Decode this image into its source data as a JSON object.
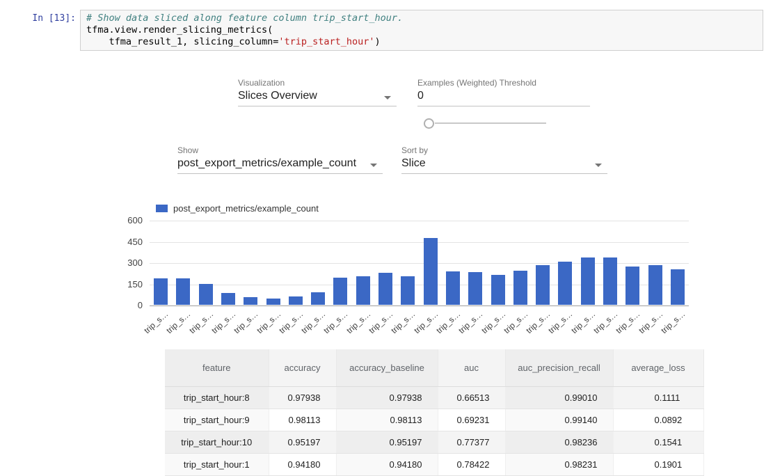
{
  "cell": {
    "prompt": "In [13]:",
    "code": {
      "comment": "# Show data sliced along feature column trip_start_hour.",
      "line2": "tfma.view.render_slicing_metrics(",
      "line3_pre": "    tfma_result_1, slicing_column=",
      "line3_string": "'trip_start_hour'",
      "line3_close": ")"
    }
  },
  "controls": {
    "visualization_label": "Visualization",
    "visualization_value": "Slices Overview",
    "threshold_label": "Examples (Weighted) Threshold",
    "threshold_value": "0",
    "show_label": "Show",
    "show_value": "post_export_metrics/example_count",
    "sort_label": "Sort by",
    "sort_value": "Slice"
  },
  "chart_data": {
    "type": "bar",
    "title": "",
    "legend": "post_export_metrics/example_count",
    "legend_position": "top-left",
    "bar_color": "#3B68C5",
    "grid": true,
    "ylim": [
      0,
      600
    ],
    "yticks": [
      0,
      150,
      300,
      450,
      600
    ],
    "categories": [
      "trip_s…",
      "trip_s…",
      "trip_s…",
      "trip_s…",
      "trip_s…",
      "trip_s…",
      "trip_s…",
      "trip_s…",
      "trip_s…",
      "trip_s…",
      "trip_s…",
      "trip_s…",
      "trip_s…",
      "trip_s…",
      "trip_s…",
      "trip_s…",
      "trip_s…",
      "trip_s…",
      "trip_s…",
      "trip_s…",
      "trip_s…",
      "trip_s…",
      "trip_s…",
      "trip_s…"
    ],
    "values": [
      187,
      187,
      148,
      84,
      54,
      44,
      59,
      89,
      192,
      202,
      226,
      202,
      472,
      236,
      231,
      211,
      241,
      280,
      305,
      334,
      334,
      270,
      280,
      251
    ]
  },
  "table": {
    "headers": [
      "feature",
      "accuracy",
      "accuracy_baseline",
      "auc",
      "auc_precision_recall",
      "average_loss"
    ],
    "rows": [
      [
        "trip_start_hour:8",
        "0.97938",
        "0.97938",
        "0.66513",
        "0.99010",
        "0.1111"
      ],
      [
        "trip_start_hour:9",
        "0.98113",
        "0.98113",
        "0.69231",
        "0.99140",
        "0.0892"
      ],
      [
        "trip_start_hour:10",
        "0.95197",
        "0.95197",
        "0.77377",
        "0.98236",
        "0.1541"
      ],
      [
        "trip_start_hour:1",
        "0.94180",
        "0.94180",
        "0.78422",
        "0.98231",
        "0.1901"
      ]
    ]
  }
}
